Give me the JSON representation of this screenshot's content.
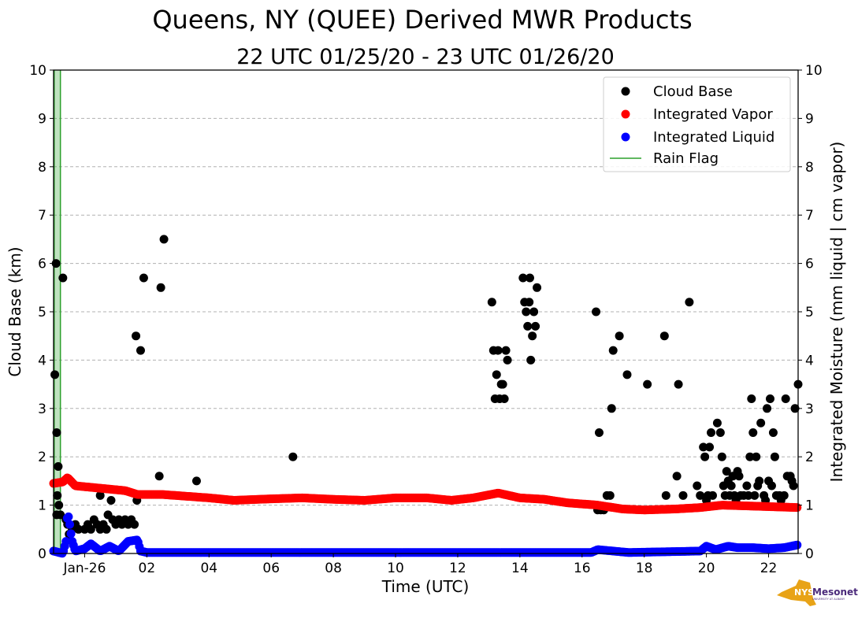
{
  "chart_data": {
    "type": "scatter",
    "title": "Queens, NY (QUEE) Derived MWR Products",
    "subtitle": "22 UTC 01/25/20 - 23 UTC 01/26/20",
    "xlabel": "Time (UTC)",
    "ylabel": "Cloud Base (km)",
    "ylabel_right": "Integrated Moisture (mm liquid | cm vapor)",
    "x_units": "hours since 00 UTC Jan-26",
    "xlim": [
      -1,
      22.95
    ],
    "ylim": [
      0,
      10
    ],
    "ylim_right": [
      0,
      10
    ],
    "grid": "horizontal dashed",
    "legend_position": "top-right",
    "x_ticks": [
      {
        "x": 0,
        "label": "Jan-26"
      },
      {
        "x": 2,
        "label": "02"
      },
      {
        "x": 4,
        "label": "04"
      },
      {
        "x": 6,
        "label": "06"
      },
      {
        "x": 8,
        "label": "08"
      },
      {
        "x": 10,
        "label": "10"
      },
      {
        "x": 12,
        "label": "12"
      },
      {
        "x": 14,
        "label": "14"
      },
      {
        "x": 16,
        "label": "16"
      },
      {
        "x": 18,
        "label": "18"
      },
      {
        "x": 20,
        "label": "20"
      },
      {
        "x": 22,
        "label": "22"
      }
    ],
    "y_ticks": [
      "0",
      "1",
      "2",
      "3",
      "4",
      "5",
      "6",
      "7",
      "8",
      "9",
      "10"
    ],
    "series": [
      {
        "name": "Cloud Base",
        "color": "#000000",
        "kind": "points",
        "points": [
          [
            -0.96,
            3.7
          ],
          [
            -0.92,
            6.0
          ],
          [
            -0.9,
            2.5
          ],
          [
            -0.88,
            1.2
          ],
          [
            -0.85,
            1.8
          ],
          [
            -0.83,
            1.0
          ],
          [
            -0.9,
            0.8
          ],
          [
            -0.78,
            0.8
          ],
          [
            -0.7,
            5.7
          ],
          [
            -0.6,
            0.7
          ],
          [
            -0.55,
            0.6
          ],
          [
            -0.5,
            0.4
          ],
          [
            -0.4,
            0.5
          ],
          [
            -0.3,
            0.6
          ],
          [
            -0.2,
            0.5
          ],
          [
            0,
            0.5
          ],
          [
            0.1,
            0.6
          ],
          [
            0.2,
            0.5
          ],
          [
            0.3,
            0.7
          ],
          [
            0.4,
            0.6
          ],
          [
            0.5,
            1.2
          ],
          [
            0.5,
            0.5
          ],
          [
            0.6,
            0.6
          ],
          [
            0.7,
            0.5
          ],
          [
            0.75,
            0.8
          ],
          [
            0.85,
            1.1
          ],
          [
            0.9,
            0.7
          ],
          [
            1.0,
            0.6
          ],
          [
            1.1,
            0.7
          ],
          [
            1.2,
            0.6
          ],
          [
            1.3,
            0.7
          ],
          [
            1.4,
            0.6
          ],
          [
            1.5,
            0.7
          ],
          [
            1.6,
            0.6
          ],
          [
            1.65,
            4.5
          ],
          [
            1.68,
            1.1
          ],
          [
            1.8,
            4.2
          ],
          [
            1.9,
            5.7
          ],
          [
            2.4,
            1.6
          ],
          [
            2.45,
            5.5
          ],
          [
            2.55,
            6.5
          ],
          [
            3.6,
            1.5
          ],
          [
            6.7,
            2.0
          ],
          [
            13.1,
            5.2
          ],
          [
            13.15,
            4.2
          ],
          [
            13.2,
            3.2
          ],
          [
            13.25,
            3.7
          ],
          [
            13.3,
            4.2
          ],
          [
            13.35,
            3.2
          ],
          [
            13.4,
            3.5
          ],
          [
            13.45,
            3.5
          ],
          [
            13.5,
            3.2
          ],
          [
            13.55,
            4.2
          ],
          [
            13.6,
            4.0
          ],
          [
            14.1,
            5.7
          ],
          [
            14.15,
            5.2
          ],
          [
            14.2,
            5.0
          ],
          [
            14.25,
            4.7
          ],
          [
            14.3,
            5.2
          ],
          [
            14.32,
            5.7
          ],
          [
            14.35,
            4.0
          ],
          [
            14.4,
            4.5
          ],
          [
            14.45,
            5.0
          ],
          [
            14.5,
            4.7
          ],
          [
            14.55,
            5.5
          ],
          [
            16.45,
            5.0
          ],
          [
            16.55,
            2.5
          ],
          [
            16.5,
            0.9
          ],
          [
            16.6,
            0.9
          ],
          [
            16.7,
            0.9
          ],
          [
            16.8,
            1.2
          ],
          [
            16.9,
            1.2
          ],
          [
            16.95,
            3.0
          ],
          [
            17.0,
            4.2
          ],
          [
            17.2,
            4.5
          ],
          [
            17.45,
            3.7
          ],
          [
            18.1,
            3.5
          ],
          [
            18.65,
            4.5
          ],
          [
            18.7,
            1.2
          ],
          [
            19.05,
            1.6
          ],
          [
            19.1,
            3.5
          ],
          [
            19.25,
            1.2
          ],
          [
            19.45,
            5.2
          ],
          [
            19.7,
            1.4
          ],
          [
            19.8,
            1.2
          ],
          [
            19.9,
            2.2
          ],
          [
            19.95,
            2.0
          ],
          [
            20.0,
            1.1
          ],
          [
            20.05,
            1.2
          ],
          [
            20.1,
            2.2
          ],
          [
            20.15,
            2.5
          ],
          [
            20.2,
            1.2
          ],
          [
            20.35,
            2.7
          ],
          [
            20.45,
            2.5
          ],
          [
            20.5,
            2.0
          ],
          [
            20.55,
            1.4
          ],
          [
            20.6,
            1.2
          ],
          [
            20.65,
            1.7
          ],
          [
            20.7,
            1.5
          ],
          [
            20.75,
            1.2
          ],
          [
            20.8,
            1.4
          ],
          [
            20.85,
            1.6
          ],
          [
            20.9,
            1.2
          ],
          [
            20.95,
            1.1
          ],
          [
            21.0,
            1.7
          ],
          [
            21.05,
            1.6
          ],
          [
            21.1,
            1.2
          ],
          [
            21.2,
            1.2
          ],
          [
            21.3,
            1.4
          ],
          [
            21.35,
            1.2
          ],
          [
            21.4,
            2.0
          ],
          [
            21.45,
            3.2
          ],
          [
            21.5,
            2.5
          ],
          [
            21.55,
            1.2
          ],
          [
            21.6,
            2.0
          ],
          [
            21.65,
            1.4
          ],
          [
            21.7,
            1.5
          ],
          [
            21.75,
            2.7
          ],
          [
            21.85,
            1.2
          ],
          [
            21.9,
            1.1
          ],
          [
            21.95,
            3.0
          ],
          [
            22.0,
            1.5
          ],
          [
            22.05,
            3.2
          ],
          [
            22.1,
            1.4
          ],
          [
            22.15,
            2.5
          ],
          [
            22.2,
            2.0
          ],
          [
            22.25,
            1.2
          ],
          [
            22.35,
            1.2
          ],
          [
            22.4,
            1.1
          ],
          [
            22.5,
            1.2
          ],
          [
            22.55,
            3.2
          ],
          [
            22.6,
            1.6
          ],
          [
            22.7,
            1.6
          ],
          [
            22.75,
            1.5
          ],
          [
            22.8,
            1.4
          ],
          [
            22.85,
            3.0
          ],
          [
            22.95,
            3.5
          ]
        ]
      },
      {
        "name": "Integrated Vapor",
        "color": "#ff0000",
        "kind": "continuous",
        "points": [
          [
            -1,
            1.45
          ],
          [
            -0.7,
            1.48
          ],
          [
            -0.55,
            1.57
          ],
          [
            -0.3,
            1.4
          ],
          [
            0.5,
            1.35
          ],
          [
            1.3,
            1.3
          ],
          [
            1.7,
            1.22
          ],
          [
            2.5,
            1.22
          ],
          [
            4,
            1.15
          ],
          [
            4.8,
            1.1
          ],
          [
            6,
            1.13
          ],
          [
            7,
            1.15
          ],
          [
            8,
            1.12
          ],
          [
            9,
            1.1
          ],
          [
            10,
            1.15
          ],
          [
            11,
            1.15
          ],
          [
            11.8,
            1.1
          ],
          [
            12.5,
            1.15
          ],
          [
            13.3,
            1.25
          ],
          [
            14,
            1.15
          ],
          [
            14.8,
            1.12
          ],
          [
            15.5,
            1.05
          ],
          [
            16.5,
            1.0
          ],
          [
            17.3,
            0.92
          ],
          [
            18,
            0.9
          ],
          [
            19,
            0.92
          ],
          [
            19.8,
            0.95
          ],
          [
            20.5,
            1.0
          ],
          [
            21.5,
            0.98
          ],
          [
            22.95,
            0.95
          ]
        ]
      },
      {
        "name": "Integrated Liquid",
        "color": "#0000ff",
        "kind": "continuous",
        "points": [
          [
            -1,
            0.05
          ],
          [
            -0.7,
            0.0
          ],
          [
            -0.6,
            0.25
          ],
          [
            -0.55,
            0.85
          ],
          [
            -0.5,
            0.7
          ],
          [
            -0.45,
            0.45
          ],
          [
            -0.4,
            0.25
          ],
          [
            -0.3,
            0.05
          ],
          [
            0,
            0.1
          ],
          [
            0.2,
            0.2
          ],
          [
            0.5,
            0.05
          ],
          [
            0.8,
            0.15
          ],
          [
            1.1,
            0.05
          ],
          [
            1.4,
            0.25
          ],
          [
            1.7,
            0.28
          ],
          [
            1.8,
            0.05
          ],
          [
            2,
            0.02
          ],
          [
            16.3,
            0.02
          ],
          [
            16.5,
            0.08
          ],
          [
            17,
            0.05
          ],
          [
            17.5,
            0.02
          ],
          [
            19.8,
            0.05
          ],
          [
            20,
            0.15
          ],
          [
            20.3,
            0.08
          ],
          [
            20.7,
            0.15
          ],
          [
            21,
            0.12
          ],
          [
            21.5,
            0.12
          ],
          [
            22,
            0.1
          ],
          [
            22.5,
            0.12
          ],
          [
            22.95,
            0.18
          ]
        ]
      },
      {
        "name": "Rain Flag",
        "color": "#2ca02c",
        "kind": "intervals",
        "intervals": [
          [
            -0.98,
            -0.78
          ]
        ]
      }
    ]
  },
  "logo": {
    "text": "NYS Mesonet",
    "subtext": "UNIVERSITY AT ALBANY"
  }
}
